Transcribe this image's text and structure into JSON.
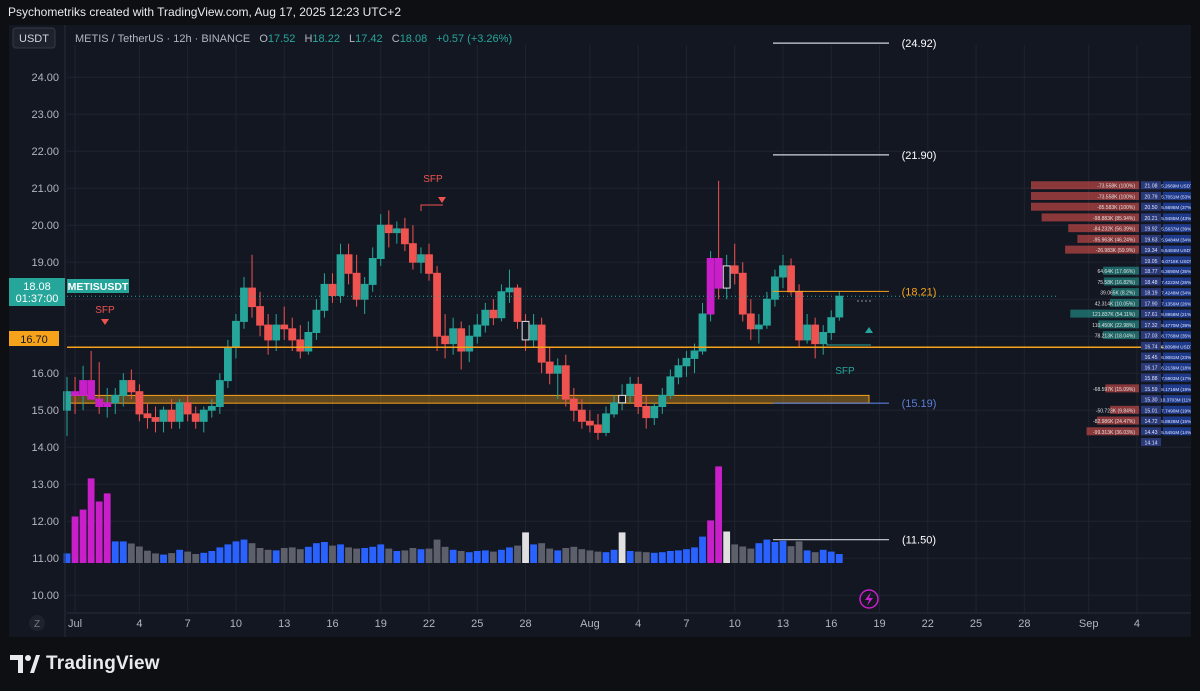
{
  "header": {
    "caption": "Psychometriks created with TradingView.com, Aug 17, 2025 12:23 UTC+2"
  },
  "legend": {
    "currency_button": "USDT",
    "symbol": "METIS / TetherUS · 12h · BINANCE",
    "o_label": "O",
    "o_value": "17.52",
    "h_label": "H",
    "h_value": "18.22",
    "l_label": "L",
    "l_value": "17.42",
    "c_label": "C",
    "c_value": "18.08",
    "change": "+0.57 (+3.26%)"
  },
  "colors": {
    "up": "#26a69a",
    "down": "#ef5350",
    "volume_blue": "#2962ff",
    "volume_magenta": "#c81fc8",
    "volume_gray": "#5d606b",
    "orange": "#f7a21b",
    "label_blue": "#5b7fd6"
  },
  "price_labels": {
    "symbol_tag": "METISUSDT",
    "last_price": "18.08",
    "countdown": "01:37:00",
    "level_price": "16.70"
  },
  "levels": [
    {
      "label": "(24.92)",
      "price": 24.92
    },
    {
      "label": "(21.90)",
      "price": 21.9
    },
    {
      "label": "(18.21)",
      "price": 18.21
    },
    {
      "label": "(15.19)",
      "price": 15.19
    },
    {
      "label": "(11.50)",
      "price": 11.5
    }
  ],
  "annotations": {
    "sfp_1": "SFP",
    "sfp_2": "SFP",
    "sfp_3": "SFP"
  },
  "footer": {
    "brand": "TradingView",
    "tz_button": "Z"
  },
  "orderbook": {
    "rows": [
      {
        "price": "21.08",
        "text": "-73.558K (100%)",
        "side": "ask"
      },
      {
        "price": "20.79",
        "text": "-73.558K (100%)",
        "side": "ask"
      },
      {
        "price": "20.50",
        "text": "-85.583K (100%)",
        "side": "ask"
      },
      {
        "price": "20.21",
        "text": "-98.883K (85.94%)",
        "side": "ask"
      },
      {
        "price": "19.92",
        "text": "-84.232K (56.39%)",
        "side": "ask"
      },
      {
        "price": "19.63",
        "text": "-95.963K (46.24%)",
        "side": "ask"
      },
      {
        "price": "19.34",
        "text": "-26.983K (59.9%)",
        "side": "ask"
      },
      {
        "price": "19.05",
        "text": "",
        "side": "none"
      },
      {
        "price": "18.77",
        "text": "64.64K (17.66%)",
        "side": "bid"
      },
      {
        "price": "18.48",
        "text": "75.58K (16.82%)",
        "side": "bid"
      },
      {
        "price": "18.19",
        "text": "39.065K (8.2%)",
        "side": "bid"
      },
      {
        "price": "17.90",
        "text": "42.314K (10.05%)",
        "side": "bid"
      },
      {
        "price": "17.61",
        "text": "121.837K (54.11%)",
        "side": "bid"
      },
      {
        "price": "17.32",
        "text": "110.450K (22.98%)",
        "side": "bid"
      },
      {
        "price": "17.03",
        "text": "78.213K (18.04%)",
        "side": "bid"
      },
      {
        "price": "16.74",
        "text": "",
        "side": "none"
      },
      {
        "price": "16.45",
        "text": "",
        "side": "none"
      },
      {
        "price": "16.17",
        "text": "",
        "side": "none"
      },
      {
        "price": "15.88",
        "text": "",
        "side": "none"
      },
      {
        "price": "15.59",
        "text": "-68.597K (15.09%)",
        "side": "ask"
      },
      {
        "price": "15.30",
        "text": "",
        "side": "none"
      },
      {
        "price": "15.01",
        "text": "-50.723K (9.84%)",
        "side": "ask"
      },
      {
        "price": "14.72",
        "text": "-82.986K (24.47%)",
        "side": "ask"
      },
      {
        "price": "14.43",
        "text": "-99.313K (36.03%)",
        "side": "ask"
      },
      {
        "price": "14.14",
        "text": "",
        "side": "none"
      }
    ],
    "right_values": [
      "5.2669M USDT",
      "5.7051M (53%)",
      "5.6695M (37%)",
      "5.9485M (43%)",
      "5.5637M (39%)",
      "5.9484M (34%)",
      "5.6484M USDT",
      "5.0718K USDT",
      "6.3690M (35%)",
      "7.4222M (26%)",
      "7.4248M (34%)",
      "7.1356M (26%)",
      "8.8958M (21%)",
      "8.4770M (39%)",
      "8.7768M (35%)",
      "5.8098M USDT",
      "6.9081M (23%)",
      "6.2139M (18%)",
      "7.5903M (17%)",
      "8.1716M (19%)",
      "10.3703M (11%)",
      "7.7490M (19%)",
      "5.8928M (15%)",
      "5.5491M (14%)",
      ""
    ]
  },
  "chart_data": {
    "type": "candlestick",
    "title": "METIS / TetherUS · 12h · BINANCE",
    "y_ticks": [
      "24.00",
      "23.00",
      "22.00",
      "21.00",
      "20.00",
      "19.00",
      "18.00",
      "17.00",
      "16.00",
      "15.00",
      "14.00",
      "13.00",
      "12.00",
      "11.00",
      "10.00"
    ],
    "x_ticks": [
      "Jul",
      "4",
      "7",
      "10",
      "13",
      "16",
      "19",
      "22",
      "25",
      "28",
      "Aug",
      "4",
      "7",
      "10",
      "13",
      "16",
      "19",
      "22",
      "25",
      "28",
      "Sep",
      "4"
    ],
    "ylim": [
      9.6,
      24.6
    ],
    "x_range": [
      "2025-06-30",
      "2025-09-05"
    ],
    "candles": [
      {
        "t": "2025-06-30 00:00",
        "o": 15.0,
        "h": 15.9,
        "l": 14.3,
        "c": 15.5,
        "v": 0.32
      },
      {
        "t": "2025-06-30 12:00",
        "o": 15.5,
        "h": 15.9,
        "l": 14.9,
        "c": 15.4,
        "v": 1.55
      },
      {
        "t": "2025-07-01 00:00",
        "o": 15.4,
        "h": 16.2,
        "l": 15.0,
        "c": 15.8,
        "v": 1.78
      },
      {
        "t": "2025-07-01 12:00",
        "o": 15.8,
        "h": 16.6,
        "l": 15.3,
        "c": 15.3,
        "v": 2.82
      },
      {
        "t": "2025-07-02 00:00",
        "o": 15.3,
        "h": 16.3,
        "l": 14.9,
        "c": 15.1,
        "v": 2.05
      },
      {
        "t": "2025-07-02 12:00",
        "o": 15.1,
        "h": 15.6,
        "l": 14.8,
        "c": 15.2,
        "v": 2.32
      },
      {
        "t": "2025-07-03 00:00",
        "o": 15.2,
        "h": 15.6,
        "l": 14.9,
        "c": 15.4,
        "v": 0.72
      },
      {
        "t": "2025-07-03 12:00",
        "o": 15.4,
        "h": 16.0,
        "l": 15.1,
        "c": 15.8,
        "v": 0.72
      },
      {
        "t": "2025-07-04 00:00",
        "o": 15.8,
        "h": 16.1,
        "l": 15.3,
        "c": 15.5,
        "v": 0.65
      },
      {
        "t": "2025-07-04 12:00",
        "o": 15.5,
        "h": 15.7,
        "l": 14.7,
        "c": 14.9,
        "v": 0.55
      },
      {
        "t": "2025-07-05 00:00",
        "o": 14.9,
        "h": 15.2,
        "l": 14.5,
        "c": 14.8,
        "v": 0.41
      },
      {
        "t": "2025-07-05 12:00",
        "o": 14.8,
        "h": 15.1,
        "l": 14.4,
        "c": 14.7,
        "v": 0.32
      },
      {
        "t": "2025-07-06 00:00",
        "o": 14.7,
        "h": 15.1,
        "l": 14.4,
        "c": 15.0,
        "v": 0.28
      },
      {
        "t": "2025-07-06 12:00",
        "o": 15.0,
        "h": 15.3,
        "l": 14.5,
        "c": 14.7,
        "v": 0.33
      },
      {
        "t": "2025-07-07 00:00",
        "o": 14.7,
        "h": 15.3,
        "l": 14.5,
        "c": 15.2,
        "v": 0.44
      },
      {
        "t": "2025-07-07 12:00",
        "o": 15.2,
        "h": 15.4,
        "l": 14.7,
        "c": 14.9,
        "v": 0.38
      },
      {
        "t": "2025-07-08 00:00",
        "o": 14.9,
        "h": 15.1,
        "l": 14.5,
        "c": 14.7,
        "v": 0.3
      },
      {
        "t": "2025-07-08 12:00",
        "o": 14.7,
        "h": 15.1,
        "l": 14.4,
        "c": 15.0,
        "v": 0.34
      },
      {
        "t": "2025-07-09 00:00",
        "o": 15.0,
        "h": 15.3,
        "l": 14.8,
        "c": 15.1,
        "v": 0.4
      },
      {
        "t": "2025-07-09 12:00",
        "o": 15.1,
        "h": 16.0,
        "l": 14.9,
        "c": 15.8,
        "v": 0.52
      },
      {
        "t": "2025-07-10 00:00",
        "o": 15.8,
        "h": 16.9,
        "l": 15.6,
        "c": 16.7,
        "v": 0.62
      },
      {
        "t": "2025-07-10 12:00",
        "o": 16.7,
        "h": 17.6,
        "l": 16.4,
        "c": 17.4,
        "v": 0.72
      },
      {
        "t": "2025-07-11 00:00",
        "o": 17.4,
        "h": 18.6,
        "l": 17.2,
        "c": 18.3,
        "v": 0.78
      },
      {
        "t": "2025-07-11 12:00",
        "o": 18.3,
        "h": 19.2,
        "l": 17.5,
        "c": 17.8,
        "v": 0.66
      },
      {
        "t": "2025-07-12 00:00",
        "o": 17.8,
        "h": 18.2,
        "l": 17.0,
        "c": 17.3,
        "v": 0.5
      },
      {
        "t": "2025-07-12 12:00",
        "o": 17.3,
        "h": 17.6,
        "l": 16.5,
        "c": 16.9,
        "v": 0.44
      },
      {
        "t": "2025-07-13 00:00",
        "o": 16.9,
        "h": 17.6,
        "l": 16.6,
        "c": 17.3,
        "v": 0.42
      },
      {
        "t": "2025-07-13 12:00",
        "o": 17.3,
        "h": 17.8,
        "l": 16.9,
        "c": 17.2,
        "v": 0.5
      },
      {
        "t": "2025-07-14 00:00",
        "o": 17.2,
        "h": 17.5,
        "l": 16.6,
        "c": 16.9,
        "v": 0.52
      },
      {
        "t": "2025-07-14 12:00",
        "o": 16.9,
        "h": 17.3,
        "l": 16.4,
        "c": 16.6,
        "v": 0.46
      },
      {
        "t": "2025-07-15 00:00",
        "o": 16.6,
        "h": 17.4,
        "l": 16.5,
        "c": 17.1,
        "v": 0.54
      },
      {
        "t": "2025-07-15 12:00",
        "o": 17.1,
        "h": 18.0,
        "l": 16.9,
        "c": 17.7,
        "v": 0.66
      },
      {
        "t": "2025-07-16 00:00",
        "o": 17.7,
        "h": 18.7,
        "l": 17.5,
        "c": 18.4,
        "v": 0.7
      },
      {
        "t": "2025-07-16 12:00",
        "o": 18.4,
        "h": 18.7,
        "l": 17.9,
        "c": 18.1,
        "v": 0.58
      },
      {
        "t": "2025-07-17 00:00",
        "o": 18.1,
        "h": 19.5,
        "l": 17.9,
        "c": 19.2,
        "v": 0.62
      },
      {
        "t": "2025-07-17 12:00",
        "o": 19.2,
        "h": 19.5,
        "l": 18.4,
        "c": 18.7,
        "v": 0.52
      },
      {
        "t": "2025-07-18 00:00",
        "o": 18.7,
        "h": 19.2,
        "l": 17.8,
        "c": 18.0,
        "v": 0.48
      },
      {
        "t": "2025-07-18 12:00",
        "o": 18.0,
        "h": 18.6,
        "l": 17.6,
        "c": 18.4,
        "v": 0.5
      },
      {
        "t": "2025-07-19 00:00",
        "o": 18.4,
        "h": 19.4,
        "l": 18.2,
        "c": 19.1,
        "v": 0.54
      },
      {
        "t": "2025-07-19 12:00",
        "o": 19.1,
        "h": 20.3,
        "l": 18.9,
        "c": 20.0,
        "v": 0.62
      },
      {
        "t": "2025-07-20 00:00",
        "o": 20.0,
        "h": 20.4,
        "l": 19.4,
        "c": 19.8,
        "v": 0.48
      },
      {
        "t": "2025-07-20 12:00",
        "o": 19.8,
        "h": 20.1,
        "l": 19.5,
        "c": 19.9,
        "v": 0.4
      },
      {
        "t": "2025-07-21 00:00",
        "o": 19.9,
        "h": 20.2,
        "l": 19.3,
        "c": 19.5,
        "v": 0.42
      },
      {
        "t": "2025-07-21 12:00",
        "o": 19.5,
        "h": 20.0,
        "l": 18.8,
        "c": 19.0,
        "v": 0.5
      },
      {
        "t": "2025-07-22 00:00",
        "o": 19.0,
        "h": 19.4,
        "l": 18.7,
        "c": 19.2,
        "v": 0.46
      },
      {
        "t": "2025-07-22 12:00",
        "o": 19.2,
        "h": 19.5,
        "l": 18.5,
        "c": 18.7,
        "v": 0.48
      },
      {
        "t": "2025-07-23 00:00",
        "o": 18.7,
        "h": 18.9,
        "l": 16.6,
        "c": 17.0,
        "v": 0.78
      },
      {
        "t": "2025-07-23 12:00",
        "o": 17.0,
        "h": 17.6,
        "l": 16.4,
        "c": 16.8,
        "v": 0.54
      },
      {
        "t": "2025-07-24 00:00",
        "o": 16.8,
        "h": 17.5,
        "l": 16.5,
        "c": 17.2,
        "v": 0.44
      },
      {
        "t": "2025-07-24 12:00",
        "o": 17.2,
        "h": 17.4,
        "l": 16.1,
        "c": 16.6,
        "v": 0.4
      },
      {
        "t": "2025-07-25 00:00",
        "o": 16.6,
        "h": 17.3,
        "l": 16.3,
        "c": 17.0,
        "v": 0.36
      },
      {
        "t": "2025-07-25 12:00",
        "o": 17.0,
        "h": 17.6,
        "l": 16.8,
        "c": 17.3,
        "v": 0.4
      },
      {
        "t": "2025-07-26 00:00",
        "o": 17.3,
        "h": 17.9,
        "l": 17.1,
        "c": 17.7,
        "v": 0.42
      },
      {
        "t": "2025-07-26 12:00",
        "o": 17.7,
        "h": 18.0,
        "l": 17.3,
        "c": 17.5,
        "v": 0.38
      },
      {
        "t": "2025-07-27 00:00",
        "o": 17.5,
        "h": 18.4,
        "l": 17.4,
        "c": 18.2,
        "v": 0.44
      },
      {
        "t": "2025-07-27 12:00",
        "o": 18.2,
        "h": 18.8,
        "l": 17.9,
        "c": 18.3,
        "v": 0.52
      },
      {
        "t": "2025-07-28 00:00",
        "o": 18.3,
        "h": 18.4,
        "l": 17.2,
        "c": 17.4,
        "v": 0.58
      },
      {
        "t": "2025-07-28 12:00",
        "o": 17.4,
        "h": 17.6,
        "l": 16.6,
        "c": 16.9,
        "v": 1.02
      },
      {
        "t": "2025-07-29 00:00",
        "o": 16.9,
        "h": 17.6,
        "l": 16.7,
        "c": 17.3,
        "v": 0.62
      },
      {
        "t": "2025-07-29 12:00",
        "o": 17.3,
        "h": 17.5,
        "l": 16.0,
        "c": 16.3,
        "v": 0.66
      },
      {
        "t": "2025-07-30 00:00",
        "o": 16.3,
        "h": 16.7,
        "l": 15.7,
        "c": 16.0,
        "v": 0.48
      },
      {
        "t": "2025-07-30 12:00",
        "o": 16.0,
        "h": 16.4,
        "l": 15.3,
        "c": 16.2,
        "v": 0.42
      },
      {
        "t": "2025-07-31 00:00",
        "o": 16.2,
        "h": 16.5,
        "l": 15.1,
        "c": 15.3,
        "v": 0.5
      },
      {
        "t": "2025-07-31 12:00",
        "o": 15.3,
        "h": 15.6,
        "l": 14.7,
        "c": 15.0,
        "v": 0.54
      },
      {
        "t": "2025-08-01 00:00",
        "o": 15.0,
        "h": 15.3,
        "l": 14.5,
        "c": 14.7,
        "v": 0.46
      },
      {
        "t": "2025-08-01 12:00",
        "o": 14.7,
        "h": 15.0,
        "l": 14.4,
        "c": 14.6,
        "v": 0.42
      },
      {
        "t": "2025-08-02 00:00",
        "o": 14.6,
        "h": 14.9,
        "l": 14.2,
        "c": 14.4,
        "v": 0.38
      },
      {
        "t": "2025-08-02 12:00",
        "o": 14.4,
        "h": 15.1,
        "l": 14.3,
        "c": 14.9,
        "v": 0.36
      },
      {
        "t": "2025-08-03 00:00",
        "o": 14.9,
        "h": 15.4,
        "l": 14.8,
        "c": 15.2,
        "v": 0.44
      },
      {
        "t": "2025-08-03 12:00",
        "o": 15.2,
        "h": 15.7,
        "l": 15.0,
        "c": 15.4,
        "v": 1.02
      },
      {
        "t": "2025-08-04 00:00",
        "o": 15.4,
        "h": 15.9,
        "l": 15.2,
        "c": 15.7,
        "v": 0.4
      },
      {
        "t": "2025-08-04 12:00",
        "o": 15.7,
        "h": 15.9,
        "l": 14.9,
        "c": 15.1,
        "v": 0.38
      },
      {
        "t": "2025-08-05 00:00",
        "o": 15.1,
        "h": 15.4,
        "l": 14.5,
        "c": 14.8,
        "v": 0.36
      },
      {
        "t": "2025-08-05 12:00",
        "o": 14.8,
        "h": 15.2,
        "l": 14.6,
        "c": 15.1,
        "v": 0.34
      },
      {
        "t": "2025-08-06 00:00",
        "o": 15.1,
        "h": 15.6,
        "l": 14.9,
        "c": 15.4,
        "v": 0.36
      },
      {
        "t": "2025-08-06 12:00",
        "o": 15.4,
        "h": 16.1,
        "l": 15.3,
        "c": 15.9,
        "v": 0.4
      },
      {
        "t": "2025-08-07 00:00",
        "o": 15.9,
        "h": 16.4,
        "l": 15.7,
        "c": 16.2,
        "v": 0.42
      },
      {
        "t": "2025-08-07 12:00",
        "o": 16.2,
        "h": 16.6,
        "l": 15.9,
        "c": 16.4,
        "v": 0.46
      },
      {
        "t": "2025-08-08 00:00",
        "o": 16.4,
        "h": 16.8,
        "l": 16.0,
        "c": 16.6,
        "v": 0.52
      },
      {
        "t": "2025-08-08 12:00",
        "o": 16.6,
        "h": 17.9,
        "l": 16.5,
        "c": 17.6,
        "v": 0.88
      },
      {
        "t": "2025-08-09 00:00",
        "o": 17.6,
        "h": 19.3,
        "l": 17.4,
        "c": 19.1,
        "v": 1.42
      },
      {
        "t": "2025-08-09 12:00",
        "o": 19.1,
        "h": 21.2,
        "l": 18.0,
        "c": 18.3,
        "v": 3.22
      },
      {
        "t": "2025-08-10 00:00",
        "o": 18.3,
        "h": 19.2,
        "l": 18.0,
        "c": 18.9,
        "v": 1.05
      },
      {
        "t": "2025-08-10 12:00",
        "o": 18.9,
        "h": 19.5,
        "l": 18.4,
        "c": 18.7,
        "v": 0.62
      },
      {
        "t": "2025-08-11 00:00",
        "o": 18.7,
        "h": 19.0,
        "l": 17.4,
        "c": 17.6,
        "v": 0.55
      },
      {
        "t": "2025-08-11 12:00",
        "o": 17.6,
        "h": 18.0,
        "l": 16.9,
        "c": 17.2,
        "v": 0.48
      },
      {
        "t": "2025-08-12 00:00",
        "o": 17.2,
        "h": 17.6,
        "l": 16.8,
        "c": 17.3,
        "v": 0.66
      },
      {
        "t": "2025-08-12 12:00",
        "o": 17.3,
        "h": 18.2,
        "l": 17.2,
        "c": 18.0,
        "v": 0.78
      },
      {
        "t": "2025-08-13 00:00",
        "o": 18.0,
        "h": 18.8,
        "l": 17.8,
        "c": 18.6,
        "v": 0.7
      },
      {
        "t": "2025-08-13 12:00",
        "o": 18.6,
        "h": 19.2,
        "l": 18.3,
        "c": 18.9,
        "v": 0.74
      },
      {
        "t": "2025-08-14 00:00",
        "o": 18.9,
        "h": 19.1,
        "l": 18.1,
        "c": 18.2,
        "v": 0.56
      },
      {
        "t": "2025-08-14 12:00",
        "o": 18.2,
        "h": 18.4,
        "l": 16.7,
        "c": 16.9,
        "v": 0.72
      },
      {
        "t": "2025-08-15 00:00",
        "o": 16.9,
        "h": 17.6,
        "l": 16.8,
        "c": 17.3,
        "v": 0.42
      },
      {
        "t": "2025-08-15 12:00",
        "o": 17.3,
        "h": 17.5,
        "l": 16.4,
        "c": 16.8,
        "v": 0.36
      },
      {
        "t": "2025-08-16 00:00",
        "o": 16.8,
        "h": 17.3,
        "l": 16.5,
        "c": 17.1,
        "v": 0.44
      },
      {
        "t": "2025-08-16 12:00",
        "o": 17.1,
        "h": 17.7,
        "l": 16.9,
        "c": 17.5,
        "v": 0.38
      },
      {
        "t": "2025-08-17 00:00",
        "o": 17.52,
        "h": 18.22,
        "l": 17.42,
        "c": 18.08,
        "v": 0.3
      }
    ],
    "horizontal_lines": [
      16.7,
      18.21
    ],
    "zone": [
      15.19,
      15.4
    ]
  }
}
